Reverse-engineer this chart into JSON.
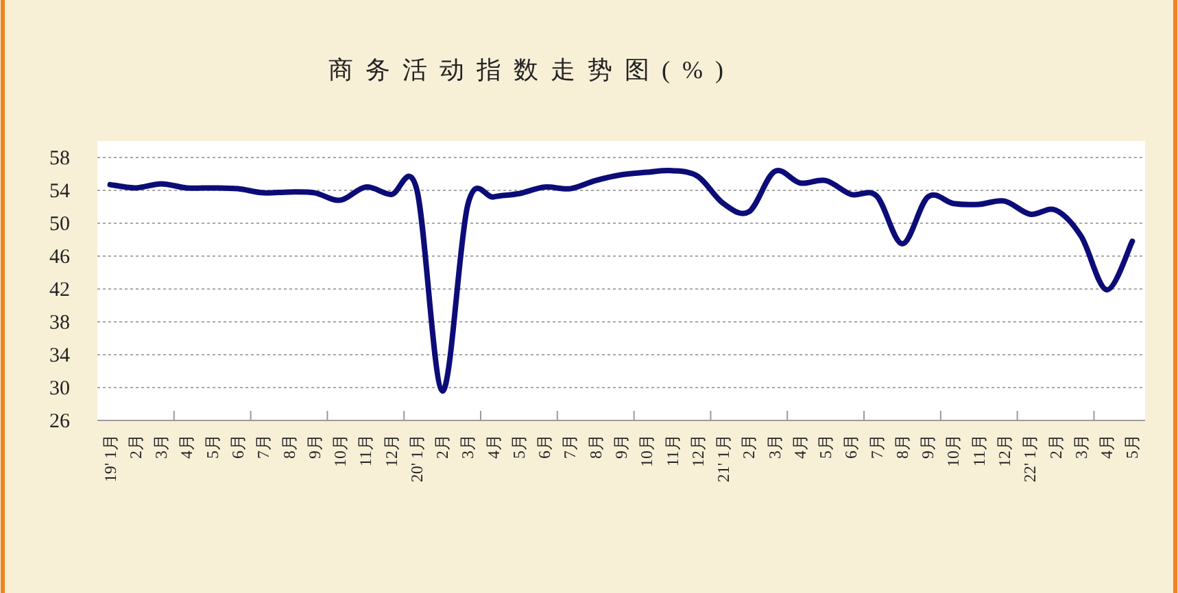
{
  "chart_data": {
    "type": "line",
    "title": "商务活动指数走势图(%)",
    "categories": [
      "19' 1月",
      "2月",
      "3月",
      "4月",
      "5月",
      "6月",
      "7月",
      "8月",
      "9月",
      "10月",
      "11月",
      "12月",
      "20' 1月",
      "2月",
      "3月",
      "4月",
      "5月",
      "6月",
      "7月",
      "8月",
      "9月",
      "10月",
      "11月",
      "12月",
      "21' 1月",
      "2月",
      "3月",
      "4月",
      "5月",
      "6月",
      "7月",
      "8月",
      "9月",
      "10月",
      "11月",
      "12月",
      "22' 1月",
      "2月",
      "3月",
      "4月",
      "5月"
    ],
    "series": [
      {
        "color": "#0c0c78",
        "values": [
          54.7,
          54.3,
          54.8,
          54.3,
          54.3,
          54.2,
          53.7,
          53.8,
          53.7,
          52.8,
          54.4,
          53.5,
          54.1,
          29.6,
          52.3,
          53.2,
          53.6,
          54.4,
          54.2,
          55.2,
          55.9,
          56.2,
          56.4,
          55.7,
          52.4,
          51.4,
          56.3,
          54.9,
          55.2,
          53.5,
          53.3,
          47.5,
          53.2,
          52.4,
          52.3,
          52.7,
          51.1,
          51.6,
          48.4,
          41.9,
          47.8
        ]
      }
    ],
    "ylim": [
      26,
      60
    ],
    "yticks": [
      26,
      30,
      34,
      38,
      42,
      46,
      50,
      54,
      58
    ],
    "grid": "y"
  }
}
